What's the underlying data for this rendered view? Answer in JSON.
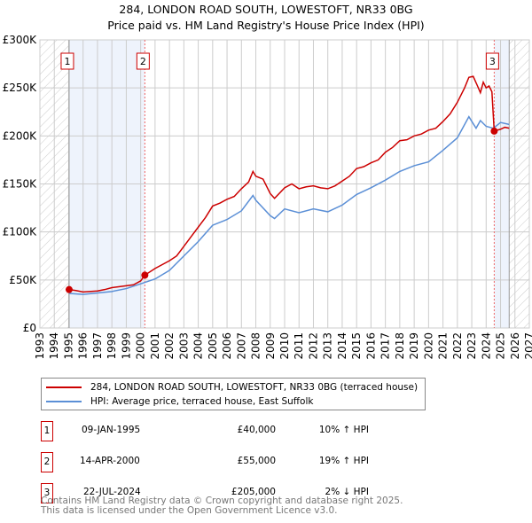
{
  "chart_data": {
    "type": "line",
    "title": "284, LONDON ROAD SOUTH, LOWESTOFT, NR33 0BG",
    "subtitle": "Price paid vs. HM Land Registry's House Price Index (HPI)",
    "xlim": [
      1993,
      2027
    ],
    "ylim": [
      0,
      300000
    ],
    "x_ticks": [
      "1993",
      "1994",
      "1995",
      "1996",
      "1997",
      "1998",
      "1999",
      "2000",
      "2001",
      "2002",
      "2003",
      "2004",
      "2005",
      "2006",
      "2007",
      "2008",
      "2009",
      "2010",
      "2011",
      "2012",
      "2013",
      "2014",
      "2015",
      "2016",
      "2017",
      "2018",
      "2019",
      "2020",
      "2021",
      "2022",
      "2023",
      "2024",
      "2025",
      "2026",
      "2027"
    ],
    "y_ticks": [
      {
        "v": 0,
        "label": "£0"
      },
      {
        "v": 50000,
        "label": "£50K"
      },
      {
        "v": 100000,
        "label": "£100K"
      },
      {
        "v": 150000,
        "label": "£150K"
      },
      {
        "v": 200000,
        "label": "£200K"
      },
      {
        "v": 250000,
        "label": "£250K"
      },
      {
        "v": 300000,
        "label": "£300K"
      }
    ],
    "grid": true,
    "legend_placement": "below",
    "series": [
      {
        "name": "284, LONDON ROAD SOUTH, LOWESTOFT, NR33 0BG (terraced house)",
        "color": "#cc0000",
        "x": [
          1995.03,
          1995.5,
          1996,
          1997,
          1997.5,
          1998,
          1999,
          1999.5,
          2000,
          2000.29,
          2001,
          2002,
          2002.5,
          2003,
          2003.5,
          2004,
          2004.5,
          2005,
          2005.5,
          2006,
          2006.5,
          2007,
          2007.5,
          2007.8,
          2008,
          2008.5,
          2009,
          2009.3,
          2010,
          2010.5,
          2011,
          2011.5,
          2012,
          2012.5,
          2013,
          2013.5,
          2014,
          2014.5,
          2015,
          2015.5,
          2016,
          2016.5,
          2017,
          2017.5,
          2018,
          2018.5,
          2019,
          2019.5,
          2020,
          2020.5,
          2021,
          2021.5,
          2022,
          2022.5,
          2022.8,
          2023.1,
          2023.4,
          2023.6,
          2023.8,
          2024,
          2024.2,
          2024.4,
          2024.56,
          2025,
          2025.3,
          2025.6
        ],
        "y": [
          40000,
          39000,
          37500,
          38500,
          40000,
          42000,
          44000,
          45000,
          49000,
          55000,
          62000,
          70000,
          75000,
          85000,
          95000,
          105000,
          115000,
          127000,
          130000,
          134000,
          137000,
          145000,
          152000,
          163000,
          158000,
          155000,
          140000,
          135000,
          146000,
          150000,
          145000,
          147000,
          148000,
          146000,
          145000,
          148000,
          153000,
          158000,
          166000,
          168000,
          172000,
          175000,
          183000,
          188000,
          195000,
          196000,
          200000,
          202000,
          206000,
          208000,
          215000,
          223000,
          235000,
          250000,
          261000,
          262000,
          252000,
          245000,
          256000,
          250000,
          252000,
          246000,
          205000,
          207000,
          209000,
          208000
        ]
      },
      {
        "name": "HPI: Average price, terraced house, East Suffolk",
        "color": "#5b8fd6",
        "x": [
          1995.03,
          1996,
          1997,
          1998,
          1999,
          2000,
          2001,
          2002,
          2003,
          2004,
          2005,
          2006,
          2007,
          2007.8,
          2008,
          2009,
          2009.3,
          2010,
          2011,
          2012,
          2013,
          2014,
          2015,
          2016,
          2017,
          2018,
          2019,
          2020,
          2021,
          2022,
          2022.8,
          2023.3,
          2023.6,
          2024,
          2024.5,
          2025,
          2025.6
        ],
        "y": [
          36000,
          35000,
          36500,
          38000,
          41000,
          46000,
          51000,
          60000,
          75000,
          90000,
          107000,
          113000,
          122000,
          138000,
          133000,
          117000,
          114000,
          124000,
          120000,
          124000,
          121000,
          128000,
          139000,
          146000,
          154000,
          163000,
          169000,
          173000,
          185000,
          198000,
          220000,
          208000,
          216000,
          210000,
          208000,
          214000,
          212000
        ]
      }
    ],
    "sales": [
      {
        "label": "1",
        "x": 1995.03,
        "y": 40000,
        "date": "09-JAN-1995",
        "price": "£40,000",
        "hpi": "10% ↑ HPI"
      },
      {
        "label": "2",
        "x": 2000.29,
        "y": 55000,
        "date": "14-APR-2000",
        "price": "£55,000",
        "hpi": "19% ↑ HPI"
      },
      {
        "label": "3",
        "x": 2024.56,
        "y": 205000,
        "date": "22-JUL-2024",
        "price": "£205,000",
        "hpi": "2% ↓ HPI"
      }
    ],
    "data_end": 2025.6
  },
  "footer": {
    "line1": "Contains HM Land Registry data © Crown copyright and database right 2025.",
    "line2": "This data is licensed under the Open Government Licence v3.0."
  }
}
